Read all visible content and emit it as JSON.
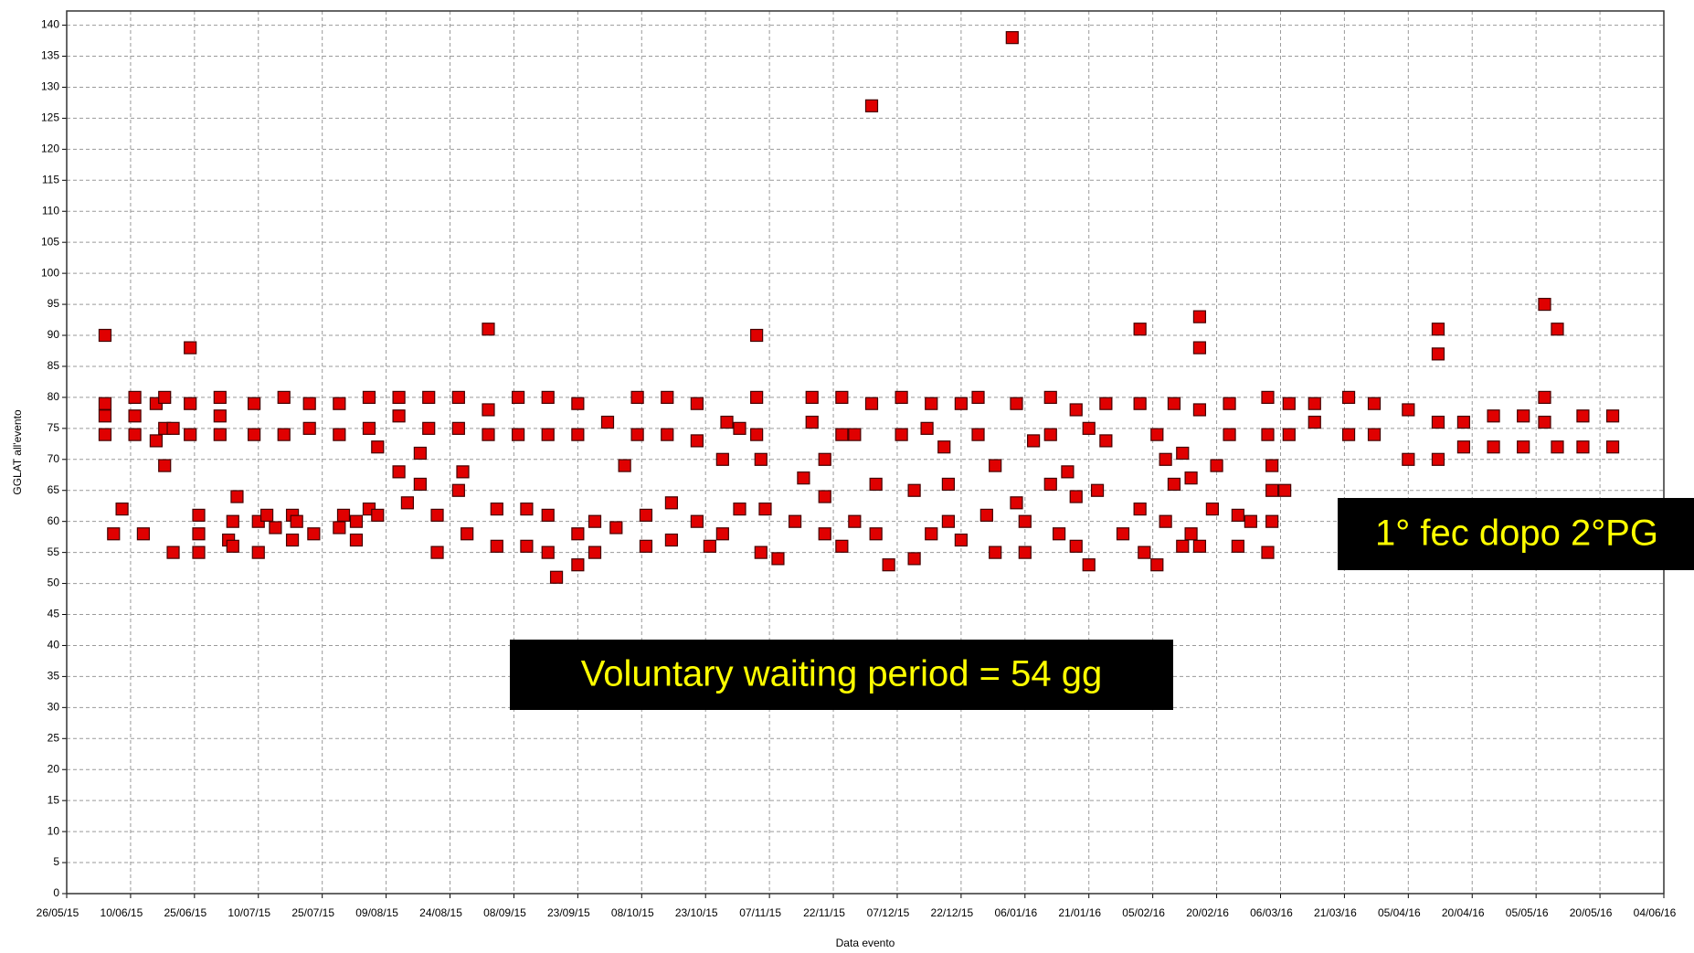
{
  "chart_data": {
    "type": "scatter",
    "x_label": "Data evento",
    "y_label": "GGLAT all'evento",
    "color": "#e00000",
    "grid": true,
    "xlim": [
      "26/05/15",
      "04/06/16"
    ],
    "xticks": [
      "26/05/15",
      "10/06/15",
      "25/06/15",
      "10/07/15",
      "25/07/15",
      "09/08/15",
      "24/08/15",
      "08/09/15",
      "23/09/15",
      "08/10/15",
      "23/10/15",
      "07/11/15",
      "22/11/15",
      "07/12/15",
      "22/12/15",
      "06/01/16",
      "21/01/16",
      "05/02/16",
      "20/02/16",
      "06/03/16",
      "21/03/16",
      "05/04/16",
      "20/04/16",
      "05/05/16",
      "20/05/16",
      "04/06/16"
    ],
    "ylim": [
      0,
      142
    ],
    "yticks": [
      0,
      5,
      10,
      15,
      20,
      25,
      30,
      35,
      40,
      45,
      50,
      55,
      60,
      65,
      70,
      75,
      80,
      85,
      90,
      95,
      100,
      105,
      110,
      115,
      120,
      125,
      130,
      135,
      140
    ],
    "x": [
      "04/06/15",
      "04/06/15",
      "04/06/15",
      "04/06/15",
      "06/06/15",
      "08/06/15",
      "11/06/15",
      "11/06/15",
      "11/06/15",
      "13/06/15",
      "16/06/15",
      "16/06/15",
      "18/06/15",
      "18/06/15",
      "18/06/15",
      "20/06/15",
      "20/06/15",
      "24/06/15",
      "24/06/15",
      "24/06/15",
      "26/06/15",
      "26/06/15",
      "26/06/15",
      "01/07/15",
      "01/07/15",
      "01/07/15",
      "03/07/15",
      "04/07/15",
      "04/07/15",
      "05/07/15",
      "09/07/15",
      "09/07/15",
      "10/07/15",
      "10/07/15",
      "12/07/15",
      "14/07/15",
      "16/07/15",
      "16/07/15",
      "18/07/15",
      "18/07/15",
      "19/07/15",
      "22/07/15",
      "22/07/15",
      "23/07/15",
      "29/07/15",
      "29/07/15",
      "29/07/15",
      "30/07/15",
      "02/08/15",
      "02/08/15",
      "05/08/15",
      "05/08/15",
      "05/08/15",
      "07/08/15",
      "07/08/15",
      "12/08/15",
      "12/08/15",
      "12/08/15",
      "14/08/15",
      "17/08/15",
      "17/08/15",
      "19/08/15",
      "19/08/15",
      "21/08/15",
      "21/08/15",
      "26/08/15",
      "26/08/15",
      "26/08/15",
      "27/08/15",
      "28/08/15",
      "02/09/15",
      "02/09/15",
      "02/09/15",
      "04/09/15",
      "04/09/15",
      "09/09/15",
      "09/09/15",
      "11/09/15",
      "11/09/15",
      "16/09/15",
      "16/09/15",
      "16/09/15",
      "16/09/15",
      "18/09/15",
      "23/09/15",
      "23/09/15",
      "23/09/15",
      "23/09/15",
      "27/09/15",
      "27/09/15",
      "30/09/15",
      "02/10/15",
      "04/10/15",
      "07/10/15",
      "07/10/15",
      "09/10/15",
      "09/10/15",
      "14/10/15",
      "14/10/15",
      "15/10/15",
      "15/10/15",
      "21/10/15",
      "21/10/15",
      "21/10/15",
      "24/10/15",
      "27/10/15",
      "27/10/15",
      "28/10/15",
      "31/10/15",
      "31/10/15",
      "04/11/15",
      "04/11/15",
      "04/11/15",
      "05/11/15",
      "05/11/15",
      "06/11/15",
      "09/11/15",
      "13/11/15",
      "15/11/15",
      "17/11/15",
      "17/11/15",
      "20/11/15",
      "20/11/15",
      "20/11/15",
      "24/11/15",
      "24/11/15",
      "24/11/15",
      "27/11/15",
      "27/11/15",
      "01/12/15",
      "01/12/15",
      "02/12/15",
      "02/12/15",
      "05/12/15",
      "08/12/15",
      "08/12/15",
      "11/12/15",
      "11/12/15",
      "14/12/15",
      "15/12/15",
      "15/12/15",
      "18/12/15",
      "19/12/15",
      "19/12/15",
      "22/12/15",
      "22/12/15",
      "26/12/15",
      "26/12/15",
      "28/12/15",
      "30/12/15",
      "30/12/15",
      "03/01/16",
      "04/01/16",
      "04/01/16",
      "06/01/16",
      "06/01/16",
      "08/01/16",
      "12/01/16",
      "12/01/16",
      "12/01/16",
      "14/01/16",
      "16/01/16",
      "18/01/16",
      "18/01/16",
      "18/01/16",
      "21/01/16",
      "21/01/16",
      "23/01/16",
      "25/01/16",
      "25/01/16",
      "29/01/16",
      "02/02/16",
      "02/02/16",
      "02/02/16",
      "03/02/16",
      "06/02/16",
      "06/02/16",
      "08/02/16",
      "08/02/16",
      "10/02/16",
      "10/02/16",
      "12/02/16",
      "12/02/16",
      "14/02/16",
      "14/02/16",
      "16/02/16",
      "16/02/16",
      "16/02/16",
      "16/02/16",
      "19/02/16",
      "20/02/16",
      "23/02/16",
      "23/02/16",
      "25/02/16",
      "25/02/16",
      "28/02/16",
      "03/03/16",
      "03/03/16",
      "03/03/16",
      "04/03/16",
      "04/03/16",
      "04/03/16",
      "07/03/16",
      "08/03/16",
      "08/03/16",
      "14/03/16",
      "14/03/16",
      "22/03/16",
      "22/03/16",
      "28/03/16",
      "28/03/16",
      "05/04/16",
      "05/04/16",
      "12/04/16",
      "12/04/16",
      "12/04/16",
      "12/04/16",
      "18/04/16",
      "18/04/16",
      "25/04/16",
      "25/04/16",
      "02/05/16",
      "02/05/16",
      "07/05/16",
      "07/05/16",
      "07/05/16",
      "10/05/16",
      "10/05/16",
      "16/05/16",
      "16/05/16",
      "23/05/16",
      "23/05/16"
    ],
    "values": [
      90,
      79,
      77,
      74,
      58,
      62,
      80,
      77,
      74,
      58,
      79,
      73,
      80,
      75,
      69,
      55,
      75,
      88,
      79,
      74,
      61,
      58,
      55,
      80,
      77,
      74,
      57,
      60,
      56,
      64,
      79,
      74,
      60,
      55,
      61,
      59,
      80,
      74,
      61,
      57,
      60,
      79,
      75,
      58,
      79,
      74,
      59,
      61,
      60,
      57,
      80,
      75,
      62,
      72,
      61,
      80,
      77,
      68,
      63,
      71,
      66,
      80,
      75,
      61,
      55,
      80,
      75,
      65,
      68,
      58,
      91,
      78,
      74,
      62,
      56,
      80,
      74,
      62,
      56,
      80,
      74,
      61,
      55,
      51,
      79,
      74,
      58,
      53,
      60,
      55,
      76,
      59,
      69,
      80,
      74,
      61,
      56,
      80,
      74,
      63,
      57,
      79,
      73,
      60,
      56,
      70,
      58,
      76,
      75,
      62,
      90,
      80,
      74,
      70,
      55,
      62,
      54,
      60,
      67,
      80,
      76,
      70,
      64,
      58,
      80,
      74,
      56,
      74,
      60,
      127,
      79,
      66,
      58,
      53,
      80,
      74,
      65,
      54,
      75,
      79,
      58,
      72,
      66,
      60,
      79,
      57,
      80,
      74,
      61,
      69,
      55,
      138,
      79,
      63,
      60,
      55,
      73,
      80,
      74,
      66,
      58,
      68,
      78,
      64,
      56,
      75,
      53,
      65,
      79,
      73,
      58,
      91,
      79,
      62,
      55,
      53,
      74,
      70,
      60,
      79,
      66,
      56,
      71,
      67,
      58,
      93,
      88,
      78,
      56,
      62,
      69,
      79,
      74,
      61,
      56,
      60,
      80,
      74,
      55,
      69,
      60,
      65,
      65,
      79,
      74,
      79,
      76,
      80,
      74,
      79,
      74,
      78,
      70,
      91,
      87,
      76,
      70,
      76,
      72,
      77,
      72,
      77,
      72,
      95,
      80,
      76,
      91,
      72,
      77,
      72,
      77,
      72
    ]
  },
  "annotations": [
    "Voluntary waiting period = 54 gg",
    "1° fec dopo 2°PG"
  ]
}
